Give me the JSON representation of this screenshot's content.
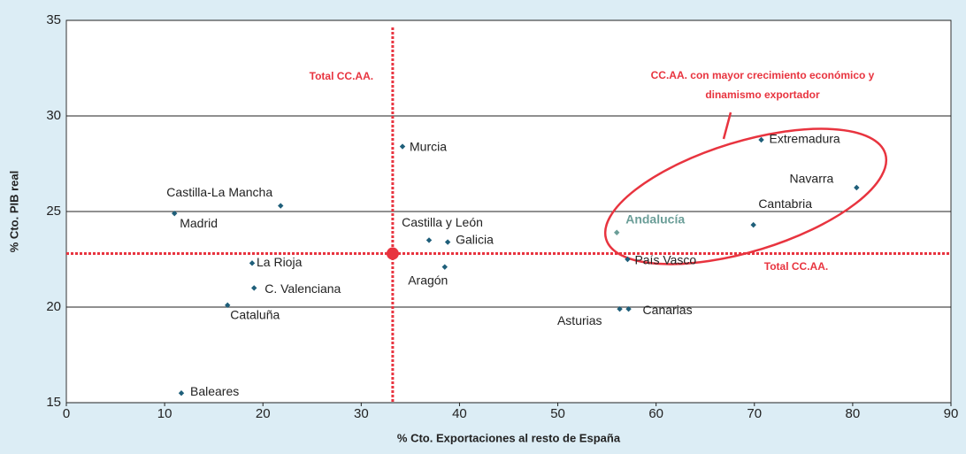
{
  "chart_data": {
    "type": "scatter",
    "xlabel": "% Cto. Exportaciones al resto de España",
    "ylabel": "% Cto. PIB real",
    "xlim": [
      0,
      90
    ],
    "ylim": [
      15,
      35
    ],
    "xticks": [
      0,
      10,
      20,
      30,
      40,
      50,
      60,
      70,
      80,
      90
    ],
    "yticks": [
      15,
      20,
      25,
      30,
      35
    ],
    "grid": true,
    "color": "#1f5f7a",
    "points": [
      {
        "label": "Murcia",
        "x": 34.2,
        "y": 28.4
      },
      {
        "label": "Castilla-La Mancha",
        "x": 21.8,
        "y": 25.3
      },
      {
        "label": "Madrid",
        "x": 11.0,
        "y": 24.9
      },
      {
        "label": "Castilla y León",
        "x": 36.9,
        "y": 23.5
      },
      {
        "label": "Galicia",
        "x": 38.8,
        "y": 23.4
      },
      {
        "label": "Andalucía",
        "x": 56.0,
        "y": 23.9,
        "color": "#6b9e98"
      },
      {
        "label": "La Rioja",
        "x": 18.9,
        "y": 22.3
      },
      {
        "label": "Aragón",
        "x": 38.5,
        "y": 22.1
      },
      {
        "label": "País Vasco",
        "x": 57.1,
        "y": 22.5
      },
      {
        "label": "C. Valenciana",
        "x": 19.1,
        "y": 21.0
      },
      {
        "label": "Cataluña",
        "x": 16.4,
        "y": 20.1
      },
      {
        "label": "Asturias",
        "x": 56.3,
        "y": 19.9
      },
      {
        "label": "Canarias",
        "x": 57.2,
        "y": 19.9
      },
      {
        "label": "Baleares",
        "x": 11.7,
        "y": 15.5
      },
      {
        "label": "Extremadura",
        "x": 70.7,
        "y": 28.75
      },
      {
        "label": "Navarra",
        "x": 80.4,
        "y": 26.25
      },
      {
        "label": "Cantabria",
        "x": 69.9,
        "y": 24.3
      }
    ],
    "reference": {
      "x": 33.2,
      "y": 22.8,
      "color": "#e8343f",
      "vline_label": "Total CC.AA.",
      "hline_label": "Total CC.AA."
    },
    "annotation": [
      "CC.AA. con mayor crecimiento económico y",
      "dinamismo exportador"
    ]
  }
}
